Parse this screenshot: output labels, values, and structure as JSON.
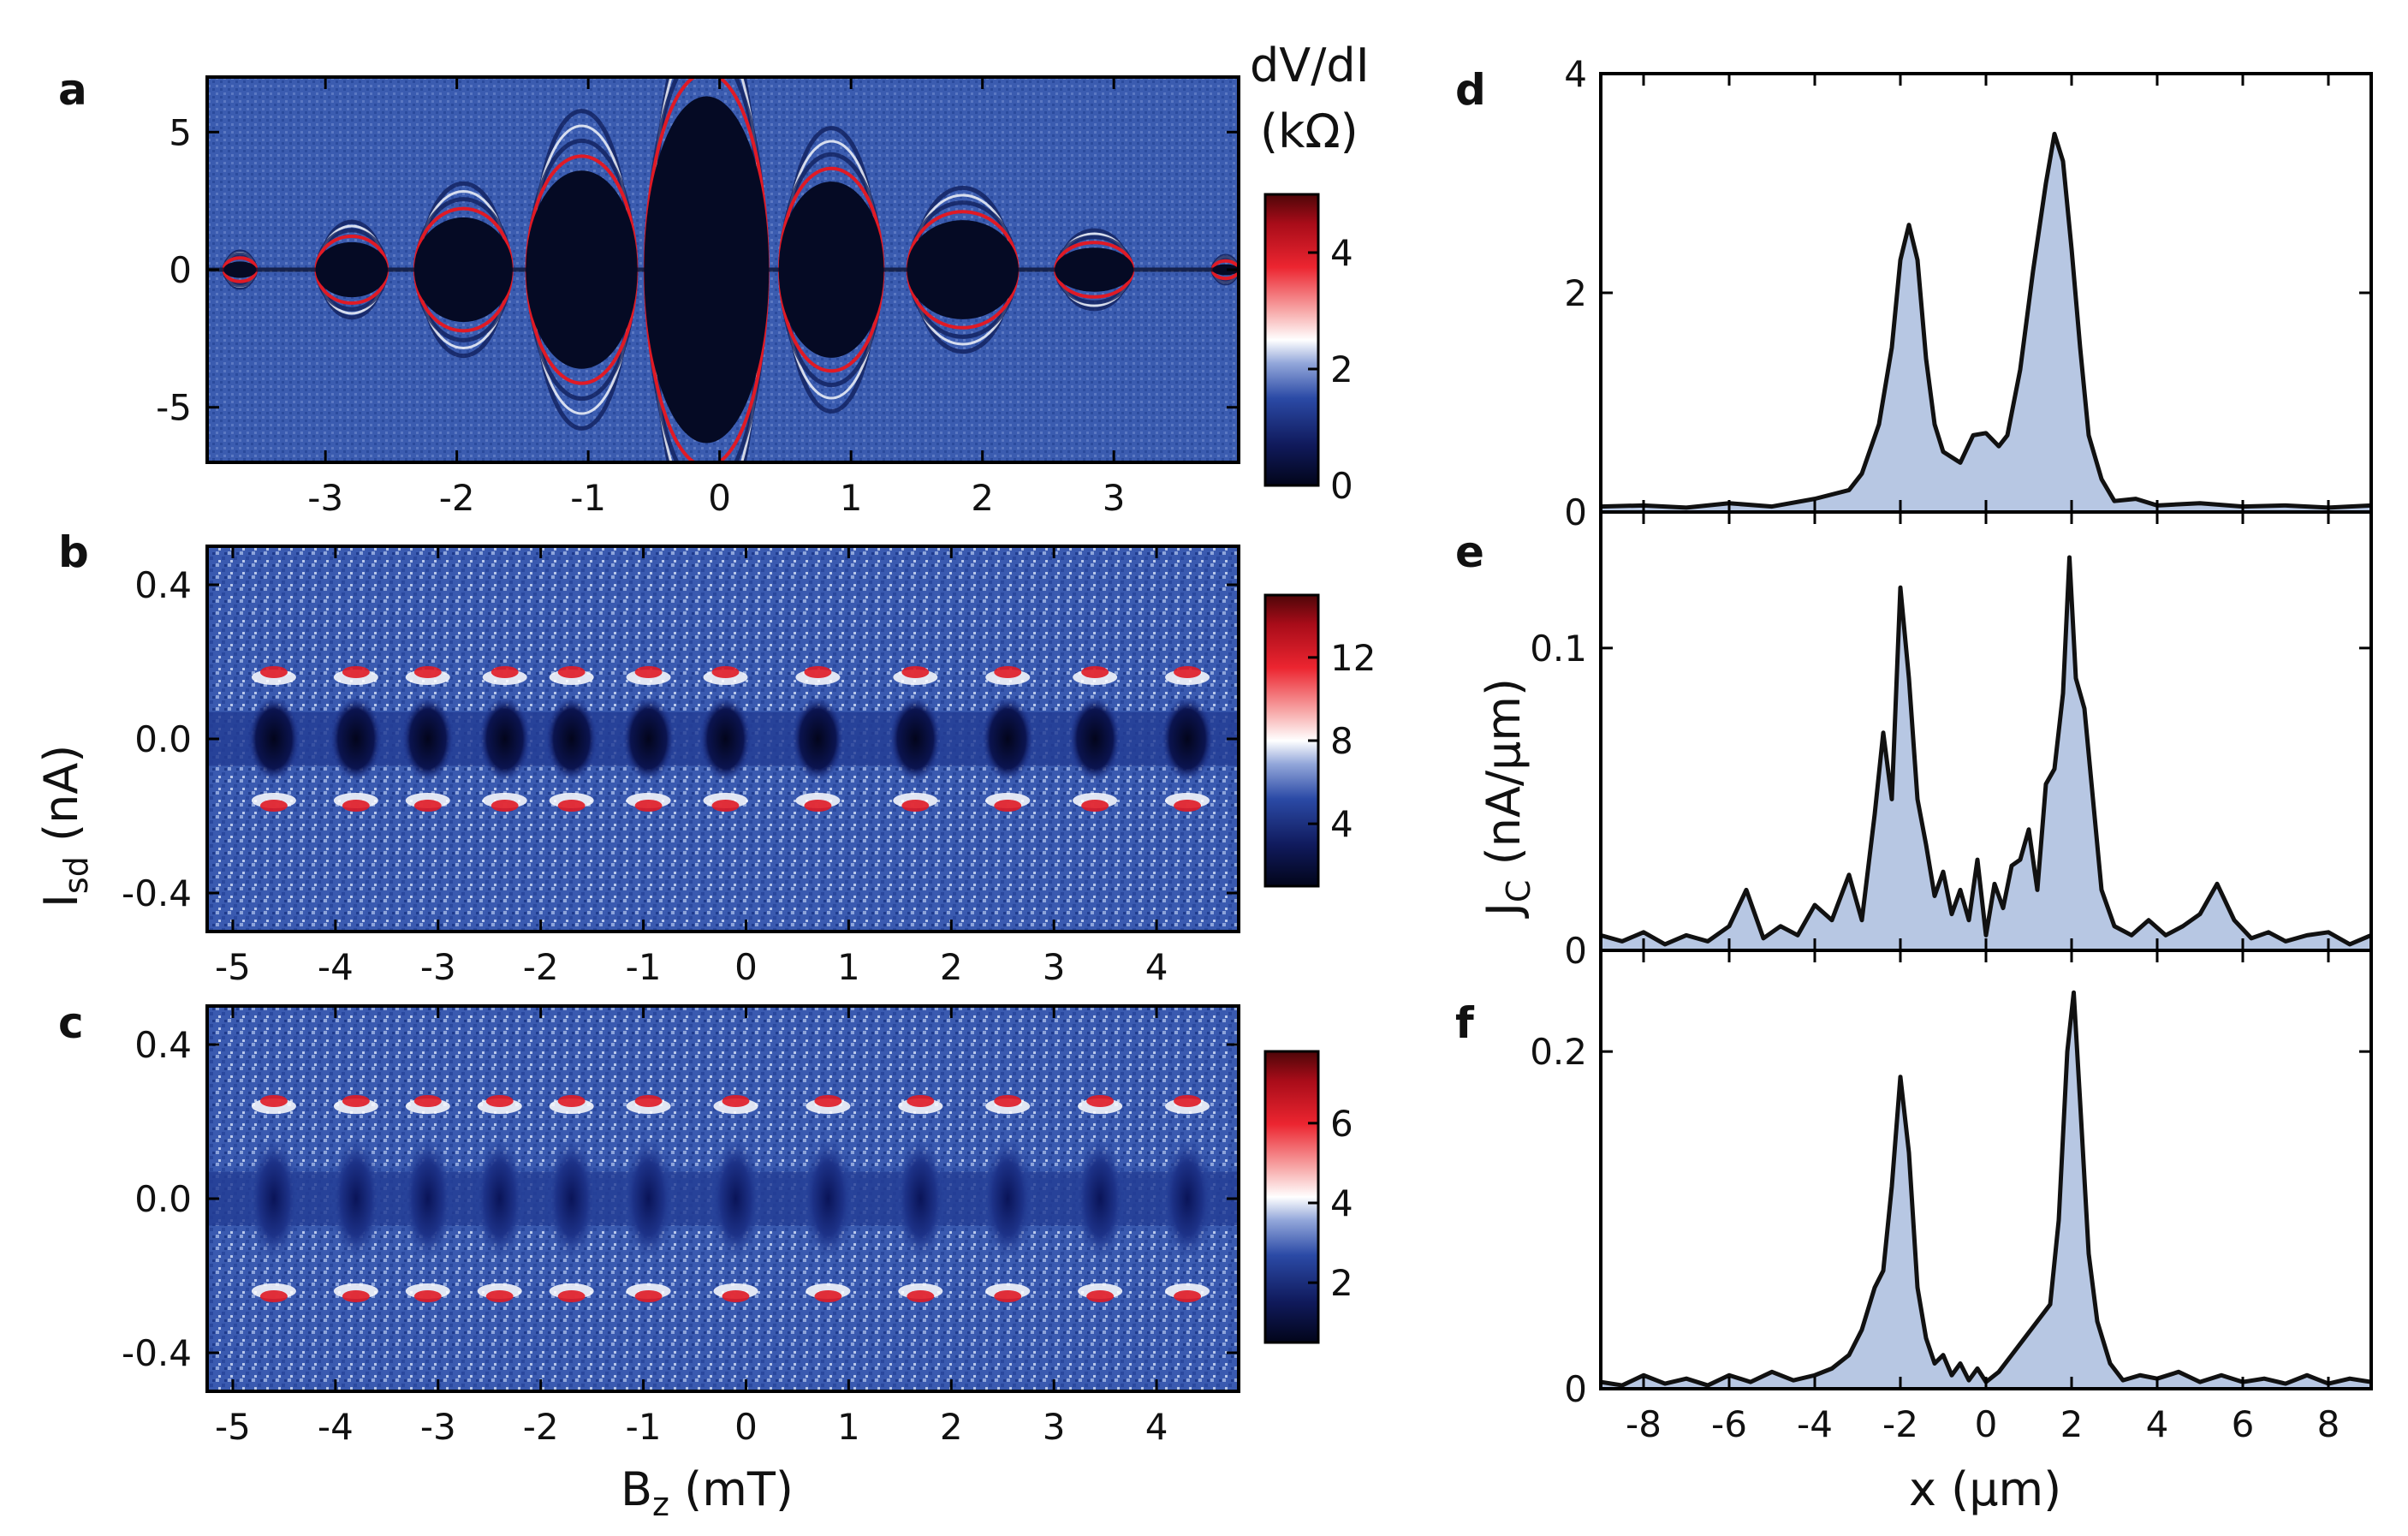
{
  "chart_data": [
    {
      "panel": "a",
      "type": "heatmap",
      "xlabel": "",
      "ylabel": "",
      "xlim": [
        -3.9,
        3.95
      ],
      "ylim": [
        -7,
        7
      ],
      "xticks": [
        -3,
        -2,
        -1,
        0,
        1,
        2,
        3
      ],
      "yticks": [
        -5,
        0,
        5
      ],
      "colorbar": {
        "title_line1": "dV/dI",
        "title_line2": "(kΩ)",
        "ticks": [
          0,
          2,
          4
        ],
        "range": [
          0,
          5
        ]
      },
      "lobes": [
        {
          "x": -3.65,
          "width": 0.25,
          "halfheight": 0.3
        },
        {
          "x": -2.8,
          "width": 0.55,
          "halfheight": 1.0
        },
        {
          "x": -1.95,
          "width": 0.75,
          "halfheight": 1.9
        },
        {
          "x": -1.05,
          "width": 0.85,
          "halfheight": 3.6
        },
        {
          "x": -0.1,
          "width": 0.95,
          "halfheight": 6.3
        },
        {
          "x": 0.85,
          "width": 0.8,
          "halfheight": 3.2
        },
        {
          "x": 1.85,
          "width": 0.85,
          "halfheight": 1.8
        },
        {
          "x": 2.85,
          "width": 0.6,
          "halfheight": 0.8
        },
        {
          "x": 3.85,
          "width": 0.2,
          "halfheight": 0.2
        }
      ]
    },
    {
      "panel": "b",
      "type": "heatmap",
      "xlabel": "",
      "ylabel": "I_sd (nA)",
      "xlim": [
        -5.25,
        4.8
      ],
      "ylim": [
        -0.5,
        0.5
      ],
      "xticks": [
        -5,
        -4,
        -3,
        -2,
        -1,
        0,
        1,
        2,
        3,
        4
      ],
      "yticks": [
        -0.4,
        0.0,
        0.4
      ],
      "colorbar": {
        "ticks": [
          4,
          8,
          12
        ],
        "range": [
          1,
          15
        ]
      },
      "lobe_centers": [
        -4.6,
        -3.8,
        -3.1,
        -2.35,
        -1.7,
        -0.95,
        -0.2,
        0.7,
        1.65,
        2.55,
        3.4,
        4.3
      ],
      "lobe_halfheight": 0.11
    },
    {
      "panel": "c",
      "type": "heatmap",
      "xlabel": "B_z (mT)",
      "ylabel": "",
      "xlim": [
        -5.25,
        4.8
      ],
      "ylim": [
        -0.5,
        0.5
      ],
      "xticks": [
        -5,
        -4,
        -3,
        -2,
        -1,
        0,
        1,
        2,
        3,
        4
      ],
      "yticks": [
        -0.4,
        0.0,
        0.4
      ],
      "colorbar": {
        "ticks": [
          2,
          4,
          6
        ],
        "range": [
          0.5,
          7.8
        ]
      },
      "lobe_centers": [
        -4.6,
        -3.8,
        -3.1,
        -2.4,
        -1.7,
        -0.95,
        -0.1,
        0.8,
        1.7,
        2.55,
        3.45,
        4.3
      ],
      "lobe_halfheight": 0.16
    },
    {
      "panel": "d",
      "type": "area",
      "xlabel": "",
      "ylabel": "",
      "xlim": [
        -9,
        9
      ],
      "ylim": [
        0,
        4
      ],
      "xticks": [
        -8,
        -6,
        -4,
        -2,
        0,
        2,
        4,
        6,
        8
      ],
      "yticks": [
        0,
        2,
        4
      ],
      "ytick_labels": [
        "0",
        "2",
        "4"
      ],
      "x": [
        -9,
        -8,
        -7,
        -6,
        -5,
        -4,
        -3.2,
        -2.9,
        -2.5,
        -2.2,
        -2.0,
        -1.8,
        -1.6,
        -1.4,
        -1.2,
        -1.0,
        -0.6,
        -0.3,
        0,
        0.3,
        0.5,
        0.8,
        1.1,
        1.4,
        1.6,
        1.8,
        2.0,
        2.2,
        2.4,
        2.7,
        3.0,
        3.5,
        4,
        5,
        6,
        7,
        8,
        9
      ],
      "y": [
        0.05,
        0.06,
        0.04,
        0.08,
        0.05,
        0.12,
        0.2,
        0.35,
        0.8,
        1.5,
        2.3,
        2.62,
        2.3,
        1.4,
        0.8,
        0.55,
        0.45,
        0.7,
        0.72,
        0.6,
        0.7,
        1.3,
        2.2,
        3.0,
        3.45,
        3.2,
        2.4,
        1.5,
        0.7,
        0.3,
        0.1,
        0.12,
        0.06,
        0.08,
        0.05,
        0.06,
        0.04,
        0.06
      ]
    },
    {
      "panel": "e",
      "type": "area",
      "xlabel": "",
      "ylabel": "J_c (nA/µm)",
      "xlim": [
        -9,
        9
      ],
      "ylim": [
        0,
        0.145
      ],
      "xticks": [
        -8,
        -6,
        -4,
        -2,
        0,
        2,
        4,
        6,
        8
      ],
      "yticks": [
        0,
        0.1
      ],
      "ytick_labels": [
        "0",
        "0.1"
      ],
      "x": [
        -9,
        -8.5,
        -8,
        -7.5,
        -7,
        -6.5,
        -6.0,
        -5.6,
        -5.2,
        -4.8,
        -4.4,
        -4.0,
        -3.6,
        -3.2,
        -2.9,
        -2.6,
        -2.4,
        -2.2,
        -2.0,
        -1.8,
        -1.6,
        -1.4,
        -1.2,
        -1.0,
        -0.8,
        -0.6,
        -0.4,
        -0.2,
        0,
        0.2,
        0.4,
        0.6,
        0.8,
        1.0,
        1.2,
        1.4,
        1.6,
        1.8,
        1.95,
        2.1,
        2.3,
        2.5,
        2.7,
        3.0,
        3.4,
        3.8,
        4.2,
        4.6,
        5.0,
        5.4,
        5.8,
        6.2,
        6.6,
        7,
        7.5,
        8,
        8.5,
        9
      ],
      "y": [
        0.005,
        0.003,
        0.006,
        0.002,
        0.005,
        0.003,
        0.008,
        0.02,
        0.004,
        0.008,
        0.005,
        0.015,
        0.01,
        0.025,
        0.01,
        0.045,
        0.072,
        0.05,
        0.12,
        0.09,
        0.05,
        0.035,
        0.018,
        0.026,
        0.012,
        0.02,
        0.01,
        0.03,
        0.005,
        0.022,
        0.014,
        0.028,
        0.03,
        0.04,
        0.02,
        0.055,
        0.06,
        0.085,
        0.13,
        0.09,
        0.08,
        0.05,
        0.02,
        0.008,
        0.005,
        0.01,
        0.005,
        0.008,
        0.012,
        0.022,
        0.01,
        0.004,
        0.006,
        0.003,
        0.005,
        0.006,
        0.002,
        0.005
      ]
    },
    {
      "panel": "f",
      "type": "area",
      "xlabel": "x (µm)",
      "ylabel": "",
      "xlim": [
        -9,
        9
      ],
      "ylim": [
        0,
        0.26
      ],
      "xticks": [
        -8,
        -6,
        -4,
        -2,
        0,
        2,
        4,
        6,
        8
      ],
      "yticks": [
        0,
        0.2
      ],
      "ytick_labels": [
        "0",
        "0.2"
      ],
      "x": [
        -9,
        -8.5,
        -8,
        -7.5,
        -7,
        -6.5,
        -6,
        -5.5,
        -5,
        -4.5,
        -4,
        -3.6,
        -3.2,
        -2.9,
        -2.6,
        -2.4,
        -2.2,
        -2.0,
        -1.8,
        -1.6,
        -1.4,
        -1.2,
        -1.0,
        -0.8,
        -0.6,
        -0.4,
        -0.2,
        0,
        0.3,
        0.6,
        0.9,
        1.2,
        1.5,
        1.7,
        1.9,
        2.05,
        2.2,
        2.4,
        2.6,
        2.9,
        3.2,
        3.6,
        4,
        4.5,
        5,
        5.5,
        6,
        6.5,
        7,
        7.5,
        8,
        8.5,
        9
      ],
      "y": [
        0.004,
        0.002,
        0.008,
        0.003,
        0.006,
        0.002,
        0.008,
        0.004,
        0.01,
        0.005,
        0.008,
        0.012,
        0.02,
        0.035,
        0.06,
        0.07,
        0.12,
        0.185,
        0.14,
        0.06,
        0.03,
        0.015,
        0.02,
        0.008,
        0.015,
        0.005,
        0.012,
        0.004,
        0.01,
        0.02,
        0.03,
        0.04,
        0.05,
        0.1,
        0.2,
        0.235,
        0.17,
        0.08,
        0.04,
        0.015,
        0.005,
        0.008,
        0.006,
        0.01,
        0.004,
        0.008,
        0.004,
        0.006,
        0.003,
        0.008,
        0.003,
        0.006,
        0.004
      ]
    }
  ],
  "labels": {
    "a": "a",
    "b": "b",
    "c": "c",
    "d": "d",
    "e": "e",
    "f": "f",
    "cbar_title_line1": "dV/dI",
    "cbar_title_line2": "(kΩ)",
    "ylabel_left_main": "I",
    "ylabel_left_sub": "sd",
    "ylabel_left_unit": " (nA)",
    "xlabel_left_main": "B",
    "xlabel_left_sub": "z",
    "xlabel_left_unit": " (mT)",
    "ylabel_right_main": "J",
    "ylabel_right_sub": "C",
    "ylabel_right_unit": " (nA/µm)",
    "xlabel_right": "x (µm)"
  },
  "colors": {
    "line": "#111111",
    "area_fill": "#b7c7e3",
    "map_background": "#3556a8",
    "map_dark": "#050a24",
    "map_red": "#e01a25",
    "map_white": "#ffffff"
  }
}
